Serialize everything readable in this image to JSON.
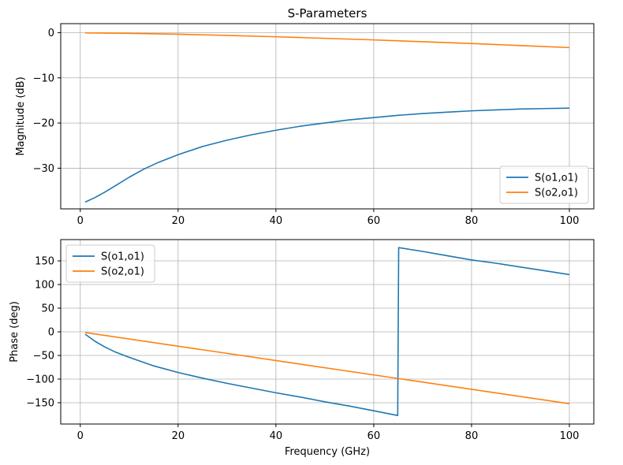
{
  "chart_data": [
    {
      "type": "line",
      "title": "S-Parameters",
      "xlabel": "",
      "ylabel": "Magnitude (dB)",
      "xlim": [
        -4,
        105
      ],
      "ylim": [
        -39,
        2
      ],
      "xticks": [
        0,
        20,
        40,
        60,
        80,
        100
      ],
      "yticks": [
        0,
        -10,
        -20,
        -30
      ],
      "grid": true,
      "legend": "bottom-right",
      "series": [
        {
          "name": "S(o1,o1)",
          "color": "#1f77b4",
          "x": [
            1,
            3,
            5,
            7,
            10,
            13,
            16,
            20,
            25,
            30,
            35,
            40,
            45,
            50,
            55,
            60,
            65,
            70,
            75,
            80,
            85,
            90,
            95,
            100
          ],
          "y": [
            -37.5,
            -36.5,
            -35.3,
            -34.0,
            -32.0,
            -30.2,
            -28.7,
            -27.0,
            -25.2,
            -23.8,
            -22.6,
            -21.6,
            -20.7,
            -20.0,
            -19.3,
            -18.8,
            -18.3,
            -17.9,
            -17.6,
            -17.3,
            -17.1,
            -16.9,
            -16.8,
            -16.7
          ]
        },
        {
          "name": "S(o2,o1)",
          "color": "#ff7f0e",
          "x": [
            1,
            10,
            20,
            30,
            40,
            50,
            60,
            70,
            80,
            90,
            100
          ],
          "y": [
            -0.05,
            -0.15,
            -0.35,
            -0.6,
            -0.9,
            -1.25,
            -1.6,
            -2.0,
            -2.4,
            -2.85,
            -3.3
          ]
        }
      ]
    },
    {
      "type": "line",
      "title": "",
      "xlabel": "Frequency (GHz)",
      "ylabel": "Phase (deg)",
      "xlim": [
        -4,
        105
      ],
      "ylim": [
        -195,
        195
      ],
      "xticks": [
        0,
        20,
        40,
        60,
        80,
        100
      ],
      "yticks": [
        150,
        100,
        50,
        0,
        -50,
        -100,
        -150
      ],
      "grid": true,
      "legend": "top-left",
      "series": [
        {
          "name": "S(o1,o1)",
          "color": "#1f77b4",
          "x": [
            1,
            3,
            5,
            7,
            10,
            15,
            20,
            25,
            30,
            35,
            40,
            45,
            50,
            55,
            60,
            64.9,
            65.1,
            70,
            75,
            80,
            85,
            90,
            95,
            100
          ],
          "y": [
            -5,
            -20,
            -32,
            -42,
            -54,
            -72,
            -86,
            -98,
            -109,
            -119,
            -129,
            -138,
            -148,
            -157,
            -167,
            -177,
            178,
            170,
            161,
            152,
            145,
            137,
            129,
            121
          ]
        },
        {
          "name": "S(o2,o1)",
          "color": "#ff7f0e",
          "x": [
            1,
            100
          ],
          "y": [
            -1.5,
            -152
          ]
        }
      ]
    }
  ]
}
